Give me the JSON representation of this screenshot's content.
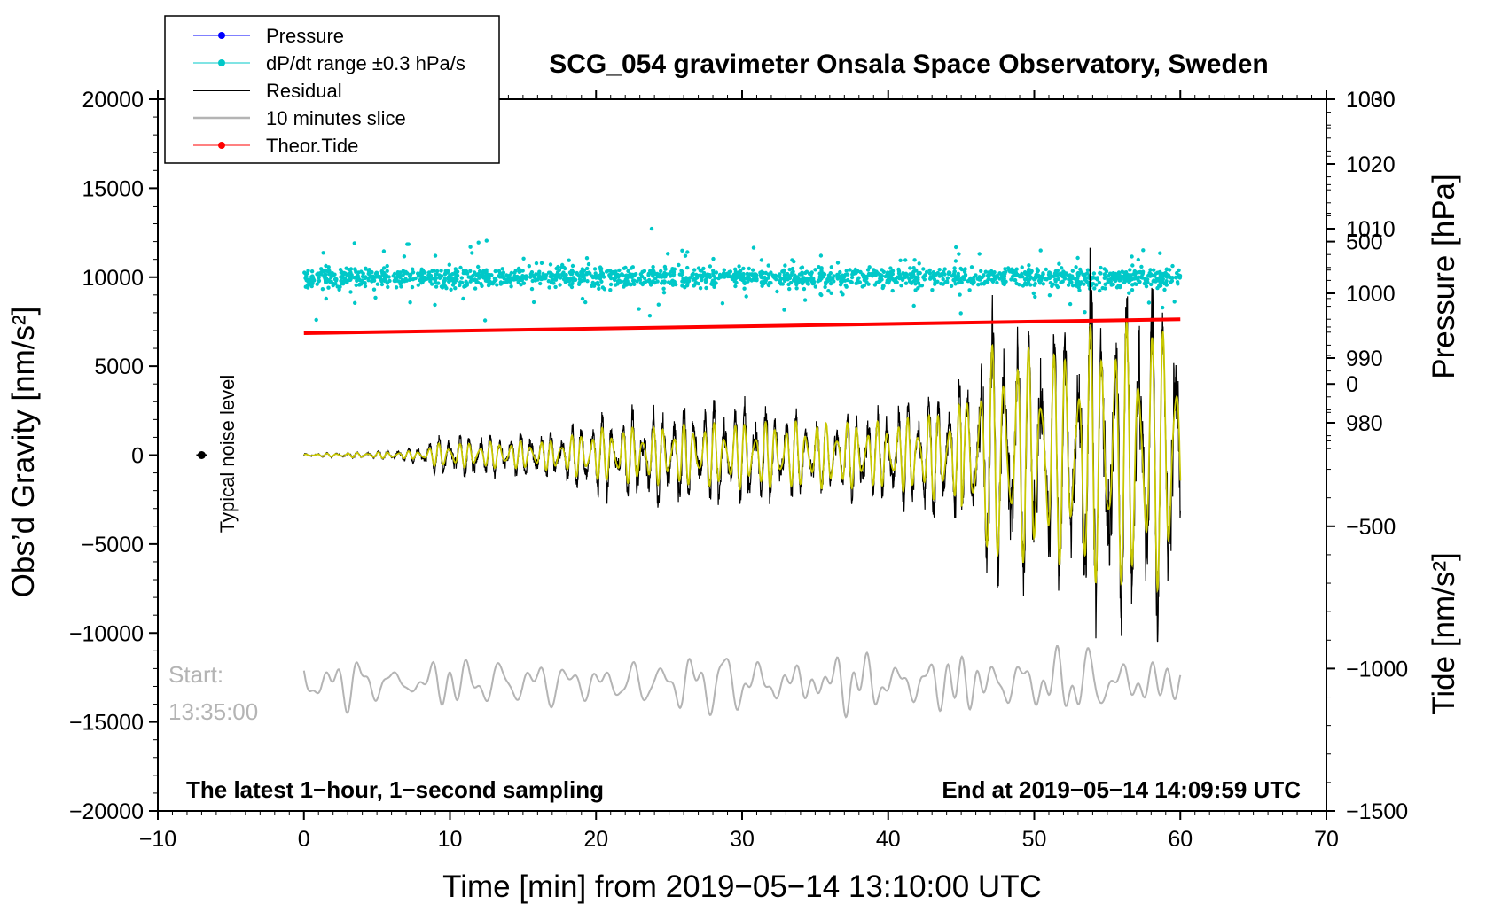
{
  "chart_data": {
    "type": "line",
    "title": "SCG_054 gravimeter Onsala Space Observatory, Sweden",
    "xlabel": "Time [min] from 2019−05−14 13:10:00 UTC",
    "ylabel_left": "Obs’d Gravity [nm/s²]",
    "ylabel_right_pressure": "Pressure [hPa]",
    "ylabel_right_tide": "Tide [nm/s²]",
    "xlim": [
      -10,
      70
    ],
    "ylim_left": [
      -20000,
      20000
    ],
    "x_ticks": [
      "−10",
      "0",
      "10",
      "20",
      "30",
      "40",
      "50",
      "60",
      "70"
    ],
    "y_left_ticks": [
      "20000",
      "15000",
      "10000",
      "5000",
      "0",
      "−5000",
      "−10000",
      "−15000",
      "−20000"
    ],
    "pressure_ticks": [
      "1030",
      "1020",
      "1010",
      "1000",
      "990",
      "980"
    ],
    "tide_ticks": [
      "1000",
      "500",
      "0",
      "−500",
      "−1000",
      "−1500"
    ],
    "legend": [
      {
        "label": "Pressure",
        "color": "#0000ff"
      },
      {
        "label": "dP/dt range ±0.3 hPa/s",
        "color": "#00c8c8"
      },
      {
        "label": "Residual",
        "color": "#000000"
      },
      {
        "label": "10 minutes slice",
        "color": "#b4b4b4"
      },
      {
        "label": "Theor.Tide",
        "color": "#ff0000"
      }
    ],
    "noise_label": "Typical noise level",
    "noise_point": {
      "x": -7,
      "y": 0
    },
    "start_label": "Start:",
    "start_time": "13:35:00",
    "footer_left": "The latest 1−hour, 1−second sampling",
    "footer_right": "End at 2019−05−14 14:09:59 UTC",
    "series": [
      {
        "name": "dP/dt range",
        "color": "#00c8c8",
        "x_range": [
          0,
          60
        ],
        "center": 10000,
        "typical_spread": 500,
        "max_spread": 3200
      },
      {
        "name": "Residual",
        "color": "#000000",
        "x_range": [
          0,
          60
        ],
        "envelope": [
          [
            0,
            100
          ],
          [
            4,
            150
          ],
          [
            8,
            400
          ],
          [
            9,
            1000
          ],
          [
            17,
            1300
          ],
          [
            20,
            2000
          ],
          [
            25,
            2500
          ],
          [
            30,
            2600
          ],
          [
            35,
            2000
          ],
          [
            40,
            2500
          ],
          [
            45,
            3500
          ],
          [
            46,
            5500
          ],
          [
            47,
            7000
          ],
          [
            50,
            6000
          ],
          [
            53,
            7000
          ],
          [
            54,
            9000
          ],
          [
            60,
            9000
          ]
        ]
      },
      {
        "name": "Residual (filtered)",
        "color": "#c8c800",
        "x_range": [
          0,
          60
        ],
        "envelope": [
          [
            0,
            60
          ],
          [
            8,
            250
          ],
          [
            9,
            700
          ],
          [
            17,
            900
          ],
          [
            20,
            1600
          ],
          [
            30,
            2000
          ],
          [
            40,
            2000
          ],
          [
            45,
            3000
          ],
          [
            46,
            5000
          ],
          [
            47,
            6500
          ],
          [
            53,
            6500
          ],
          [
            54,
            8000
          ],
          [
            60,
            8000
          ]
        ]
      },
      {
        "name": "Theor.Tide",
        "color": "#ff0000",
        "x": [
          0,
          60
        ],
        "y": [
          178,
          227
        ]
      },
      {
        "name": "10 minutes slice",
        "color": "#b4b4b4",
        "x_range": [
          0,
          60
        ],
        "center": -12800,
        "amplitude": 1600
      }
    ],
    "pressure_lim": [
      920,
      1030
    ],
    "tide_lim": [
      -1500,
      1000
    ]
  }
}
